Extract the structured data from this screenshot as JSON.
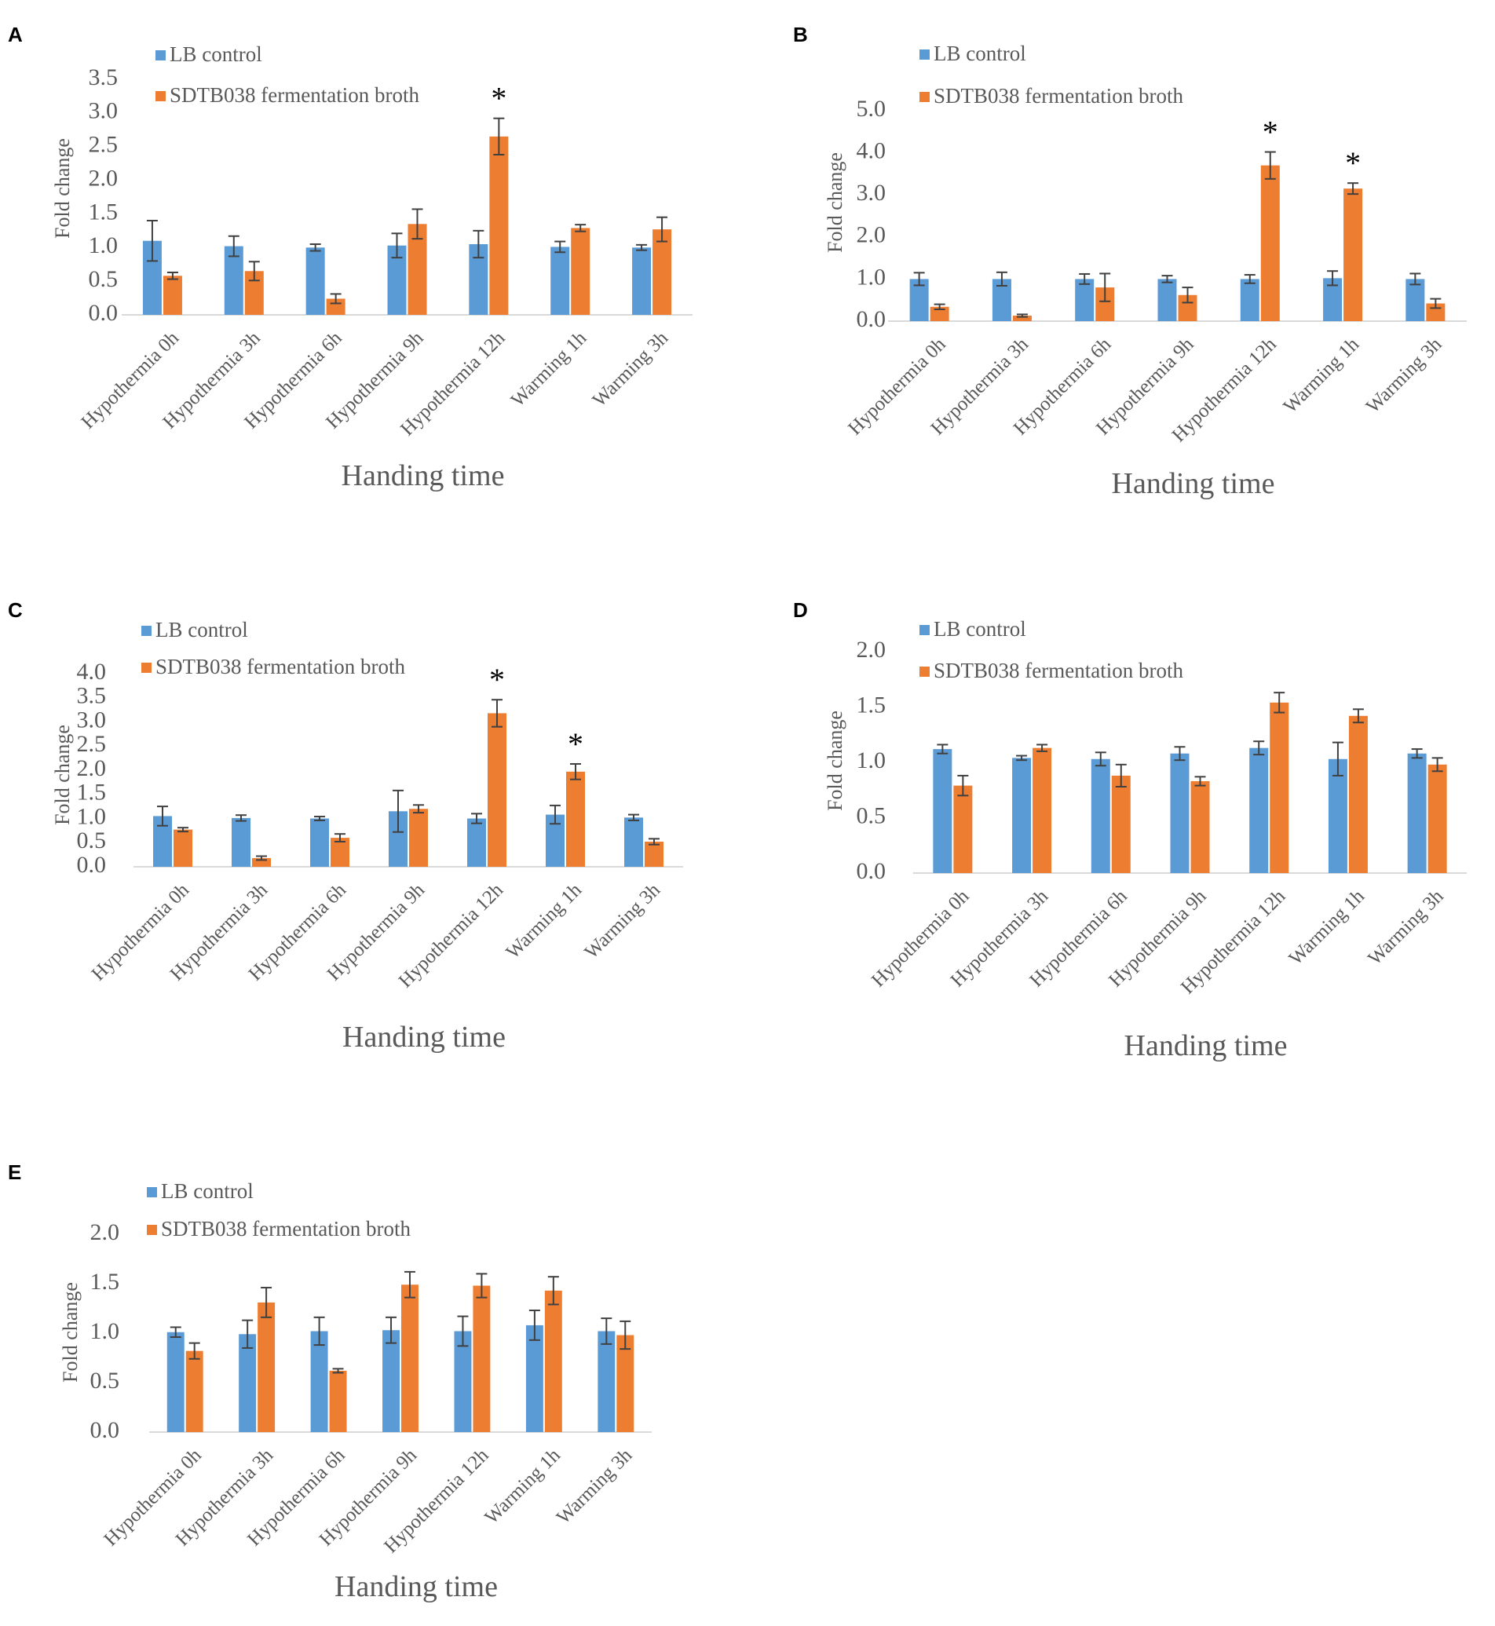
{
  "legend": {
    "control": "LB control",
    "treatment": "SDTB038 fermentation broth"
  },
  "colors": {
    "control": "#5B9BD5",
    "treatment": "#ED7D31",
    "axis": "#d9d9d9",
    "text": "#595959",
    "errorbar": "#404040"
  },
  "chart_data": [
    {
      "panel": "A",
      "type": "bar",
      "ylabel": "Fold change",
      "xlabel": "Handing time",
      "ylim": [
        0,
        3.5
      ],
      "yticks": [
        "0.0",
        "0.5",
        "1.0",
        "1.5",
        "2.0",
        "2.5",
        "3.0",
        "3.5"
      ],
      "categories": [
        "Hypothermia 0h",
        "Hypothermia 3h",
        "Hypothermia 6h",
        "Hypothermia 9h",
        "Hypothermia 12h",
        "Warming 1h",
        "Warming 3h"
      ],
      "series": [
        {
          "name": "LB control",
          "values": [
            1.1,
            1.02,
            1.0,
            1.03,
            1.05,
            1.01,
            1.0
          ],
          "errors": [
            0.3,
            0.15,
            0.05,
            0.18,
            0.2,
            0.08,
            0.04
          ]
        },
        {
          "name": "SDTB038 fermentation broth",
          "values": [
            0.58,
            0.65,
            0.24,
            1.35,
            2.65,
            1.29,
            1.27
          ],
          "errors": [
            0.05,
            0.14,
            0.07,
            0.22,
            0.27,
            0.05,
            0.18
          ]
        }
      ],
      "significance": [
        "",
        "",
        "",
        "",
        "*",
        "",
        ""
      ]
    },
    {
      "panel": "B",
      "type": "bar",
      "ylabel": "Fold change",
      "xlabel": "Handing time",
      "ylim": [
        0,
        5.0
      ],
      "yticks": [
        "0.0",
        "1.0",
        "2.0",
        "3.0",
        "4.0",
        "5.0"
      ],
      "categories": [
        "Hypothermia 0h",
        "Hypothermia 3h",
        "Hypothermia 6h",
        "Hypothermia 9h",
        "Hypothermia 12h",
        "Warming 1h",
        "Warming 3h"
      ],
      "series": [
        {
          "name": "LB control",
          "values": [
            1.0,
            1.0,
            1.0,
            1.0,
            1.0,
            1.02,
            1.0
          ],
          "errors": [
            0.15,
            0.16,
            0.12,
            0.08,
            0.1,
            0.17,
            0.13
          ]
        },
        {
          "name": "SDTB038 fermentation broth",
          "values": [
            0.34,
            0.13,
            0.8,
            0.62,
            3.7,
            3.15,
            0.42
          ],
          "errors": [
            0.06,
            0.03,
            0.33,
            0.18,
            0.32,
            0.13,
            0.11
          ]
        }
      ],
      "significance": [
        "",
        "",
        "",
        "",
        "*",
        "*",
        ""
      ]
    },
    {
      "panel": "C",
      "type": "bar",
      "ylabel": "Fold change",
      "xlabel": "Handing time",
      "ylim": [
        0,
        4.0
      ],
      "yticks": [
        "0.0",
        "0.5",
        "1.0",
        "1.5",
        "2.0",
        "2.5",
        "3.0",
        "3.5",
        "4.0"
      ],
      "categories": [
        "Hypothermia 0h",
        "Hypothermia 3h",
        "Hypothermia 6h",
        "Hypothermia 9h",
        "Hypothermia 12h",
        "Warming 1h",
        "Warming 3h"
      ],
      "series": [
        {
          "name": "LB control",
          "values": [
            1.05,
            1.01,
            1.0,
            1.15,
            1.0,
            1.08,
            1.02
          ],
          "errors": [
            0.2,
            0.06,
            0.04,
            0.43,
            0.1,
            0.19,
            0.06
          ]
        },
        {
          "name": "SDTB038 fermentation broth",
          "values": [
            0.77,
            0.18,
            0.6,
            1.2,
            3.18,
            1.97,
            0.52
          ],
          "errors": [
            0.04,
            0.04,
            0.08,
            0.08,
            0.28,
            0.16,
            0.06
          ]
        }
      ],
      "significance": [
        "",
        "",
        "",
        "",
        "*",
        "*",
        ""
      ]
    },
    {
      "panel": "D",
      "type": "bar",
      "ylabel": "Fold change",
      "xlabel": "Handing time",
      "ylim": [
        0,
        2.0
      ],
      "yticks": [
        "0.0",
        "0.5",
        "1.0",
        "1.5",
        "2.0"
      ],
      "categories": [
        "Hypothermia 0h",
        "Hypothermia 3h",
        "Hypothermia 6h",
        "Hypothermia 9h",
        "Hypothermia 12h",
        "Warming 1h",
        "Warming 3h"
      ],
      "series": [
        {
          "name": "LB control",
          "values": [
            1.12,
            1.04,
            1.03,
            1.08,
            1.13,
            1.03,
            1.08
          ],
          "errors": [
            0.04,
            0.02,
            0.06,
            0.06,
            0.06,
            0.15,
            0.04
          ]
        },
        {
          "name": "SDTB038 fermentation broth",
          "values": [
            0.79,
            1.13,
            0.88,
            0.83,
            1.54,
            1.42,
            0.98
          ],
          "errors": [
            0.09,
            0.03,
            0.1,
            0.04,
            0.09,
            0.06,
            0.06
          ]
        }
      ],
      "significance": [
        "",
        "",
        "",
        "",
        "",
        "",
        ""
      ]
    },
    {
      "panel": "E",
      "type": "bar",
      "ylabel": "Fold change",
      "xlabel": "Handing time",
      "ylim": [
        0,
        2.0
      ],
      "yticks": [
        "0.0",
        "0.5",
        "1.0",
        "1.5",
        "2.0"
      ],
      "categories": [
        "Hypothermia 0h",
        "Hypothermia 3h",
        "Hypothermia 6h",
        "Hypothermia 9h",
        "Hypothermia 12h",
        "Warming 1h",
        "Warming 3h"
      ],
      "series": [
        {
          "name": "LB control",
          "values": [
            1.01,
            0.99,
            1.02,
            1.03,
            1.02,
            1.08,
            1.02
          ],
          "errors": [
            0.05,
            0.14,
            0.14,
            0.13,
            0.15,
            0.15,
            0.13
          ]
        },
        {
          "name": "SDTB038 fermentation broth",
          "values": [
            0.82,
            1.31,
            0.62,
            1.49,
            1.48,
            1.43,
            0.98
          ],
          "errors": [
            0.08,
            0.15,
            0.02,
            0.13,
            0.12,
            0.14,
            0.14
          ]
        }
      ],
      "significance": [
        "",
        "",
        "",
        "",
        "",
        "",
        ""
      ]
    }
  ]
}
